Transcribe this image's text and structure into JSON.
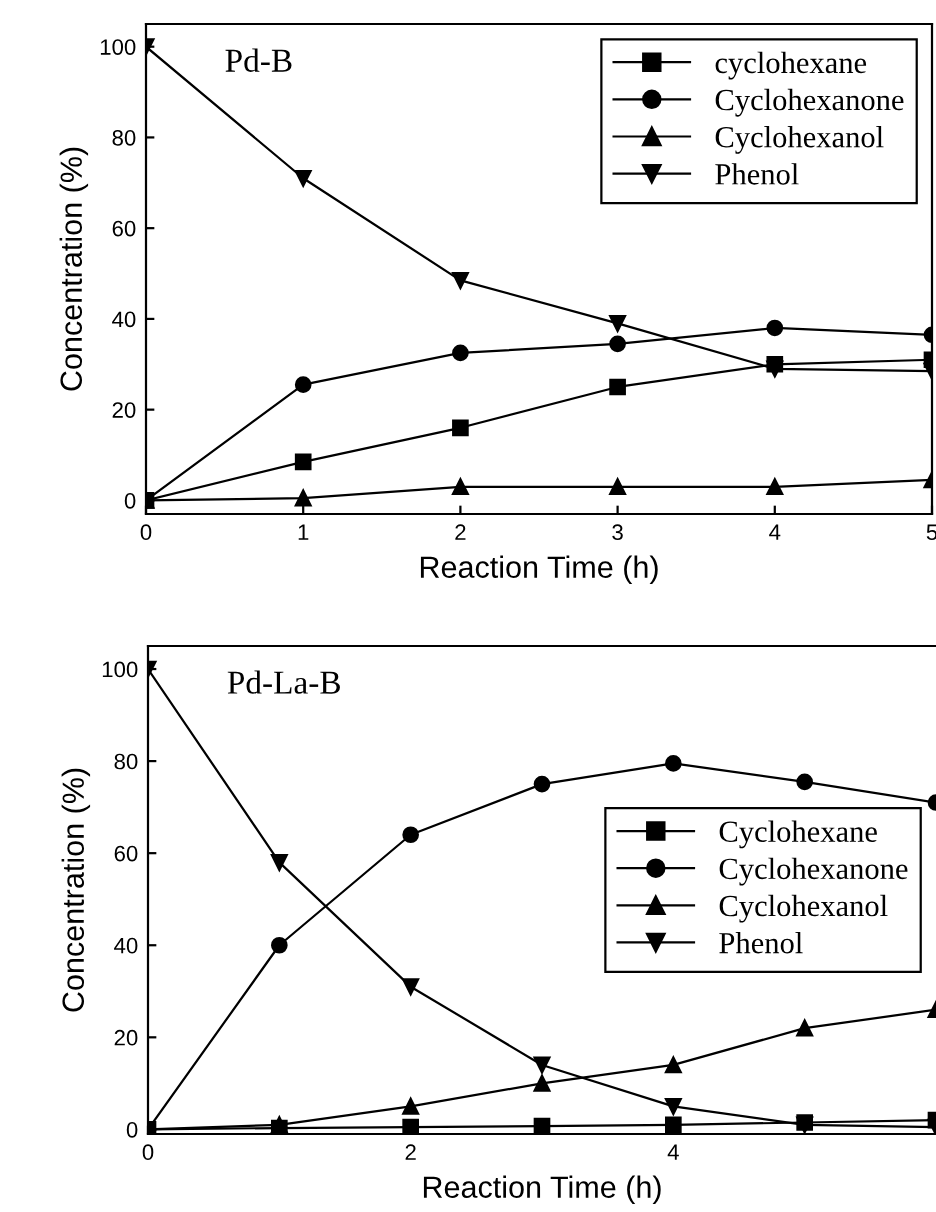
{
  "chart_data": [
    {
      "type": "line",
      "title": "Pd-B",
      "xlabel": "Reaction Time (h)",
      "ylabel": "Concentration (%)",
      "x": [
        0,
        1,
        2,
        3,
        4,
        5
      ],
      "xlim": [
        0,
        5
      ],
      "xticks": [
        0,
        1,
        2,
        3,
        4,
        5
      ],
      "ylim": [
        -3,
        105
      ],
      "yticks": [
        0,
        20,
        40,
        60,
        80,
        100
      ],
      "legend": "top right",
      "grid": false,
      "series": [
        {
          "name": "cyclohexane",
          "color": "#000000",
          "marker": "square",
          "values": [
            0,
            8.5,
            16,
            25,
            30,
            31
          ]
        },
        {
          "name": "Cyclohexanone",
          "color": "#000000",
          "marker": "circle",
          "values": [
            0,
            25.5,
            32.5,
            34.5,
            38,
            36.5
          ]
        },
        {
          "name": "Cyclohexanol",
          "color": "#000000",
          "marker": "triangle",
          "values": [
            0,
            0.5,
            3,
            3,
            3,
            4.5
          ]
        },
        {
          "name": "Phenol",
          "color": "#000000",
          "marker": "triangle_down",
          "values": [
            100,
            71,
            48.5,
            39,
            29,
            28.5
          ]
        }
      ]
    },
    {
      "type": "line",
      "title": "Pd-La-B",
      "xlabel": "Reaction Time (h)",
      "ylabel": "Concentration (%)",
      "x": [
        0,
        1,
        2,
        3,
        4,
        5,
        6
      ],
      "xlim": [
        0,
        6
      ],
      "xticks": [
        0,
        2,
        4
      ],
      "ylim": [
        -1,
        105
      ],
      "yticks": [
        0,
        20,
        40,
        60,
        80,
        100
      ],
      "legend": "center right",
      "grid": false,
      "series": [
        {
          "name": "Cyclohexane",
          "color": "#000000",
          "marker": "square",
          "values": [
            0,
            0.3,
            0.5,
            0.7,
            1,
            1.5,
            2
          ]
        },
        {
          "name": "Cyclohexanone",
          "color": "#000000",
          "marker": "circle",
          "values": [
            0,
            40,
            64,
            75,
            79.5,
            75.5,
            71
          ]
        },
        {
          "name": "Cyclohexanol",
          "color": "#000000",
          "marker": "triangle",
          "values": [
            0,
            1,
            5,
            10,
            14,
            22,
            26
          ]
        },
        {
          "name": "Phenol",
          "color": "#000000",
          "marker": "triangle_down",
          "values": [
            100,
            58,
            31,
            14,
            5,
            1,
            0.5
          ]
        }
      ]
    }
  ]
}
